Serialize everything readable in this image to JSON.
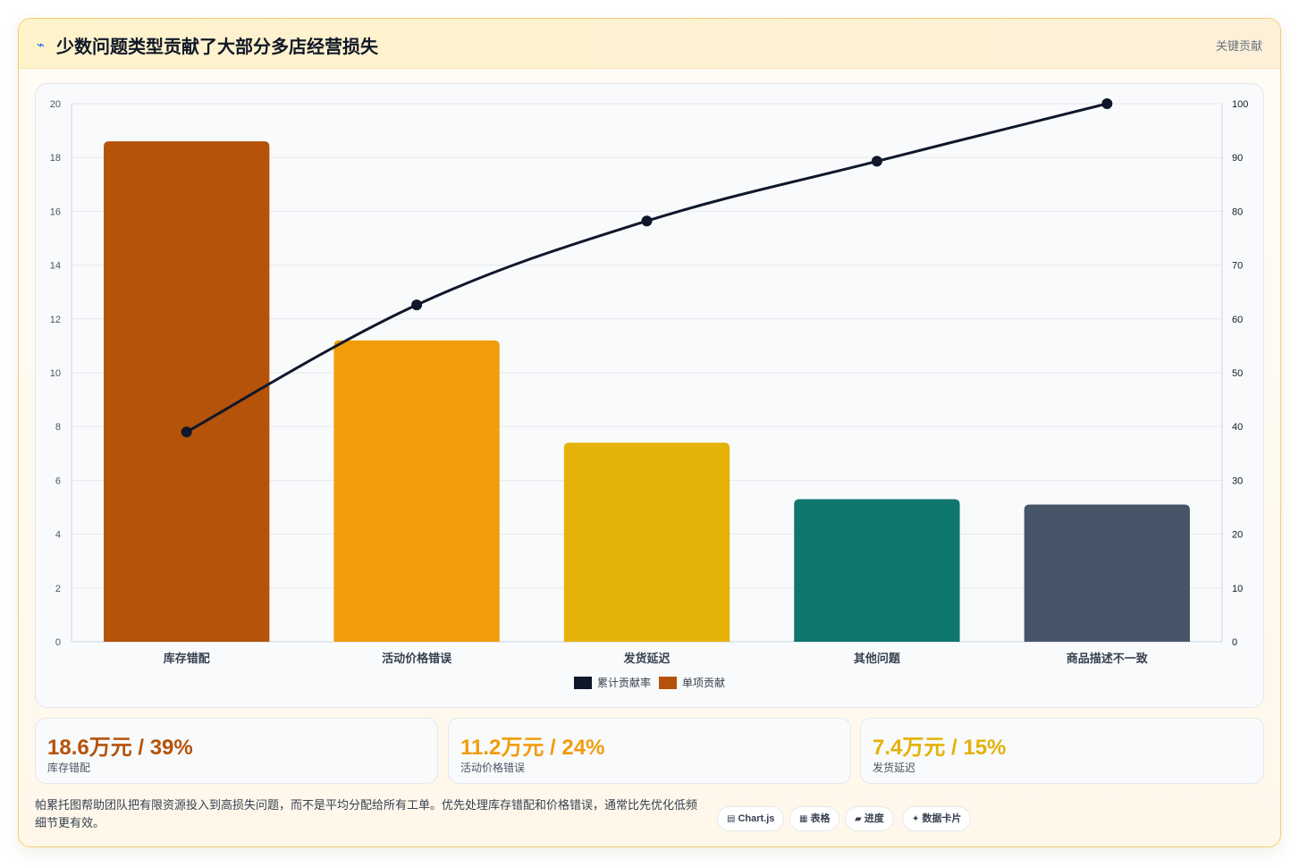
{
  "header": {
    "icon": "trend-icon",
    "title": "少数问题类型贡献了大部分多店经营损失",
    "tag": "关键贡献"
  },
  "chart_data": {
    "type": "bar",
    "categories": [
      "库存错配",
      "活动价格错误",
      "发货延迟",
      "其他问题",
      "商品描述不一致"
    ],
    "series": [
      {
        "name": "单项贡献",
        "type": "bar",
        "axis": "left",
        "values": [
          18.6,
          11.2,
          7.4,
          5.3,
          5.1
        ],
        "colors": [
          "#b45309",
          "#f29c0c",
          "#e5b208",
          "#0f766e",
          "#475569"
        ]
      },
      {
        "name": "累计贡献率",
        "type": "line",
        "axis": "right",
        "values": [
          39,
          62.6,
          78.2,
          89.3,
          100
        ],
        "color": "#0f172a"
      }
    ],
    "y_left": {
      "min": 0,
      "max": 20,
      "ticks": [
        0,
        2,
        4,
        6,
        8,
        10,
        12,
        14,
        16,
        18,
        20
      ]
    },
    "y_right": {
      "min": 0,
      "max": 100,
      "ticks": [
        0,
        10,
        20,
        30,
        40,
        50,
        60,
        70,
        80,
        90,
        100
      ]
    },
    "legend": [
      {
        "label": "累计贡献率",
        "color": "#0f172a"
      },
      {
        "label": "单项贡献",
        "color": "#b45309"
      }
    ],
    "legend_position": "bottom",
    "grid": true
  },
  "kpis": [
    {
      "value": "18.6万元 / 39%",
      "label": "库存错配",
      "color": "#b45309"
    },
    {
      "value": "11.2万元 / 24%",
      "label": "活动价格错误",
      "color": "#f29c0c"
    },
    {
      "value": "7.4万元 / 15%",
      "label": "发货延迟",
      "color": "#e5b208"
    }
  ],
  "footnote": "帕累托图帮助团队把有限资源投入到高损失问题，而不是平均分配给所有工单。优先处理库存错配和价格错误，通常比先优化低频细节更有效。",
  "chips": [
    {
      "icon": "▤",
      "label": "Chart.js"
    },
    {
      "icon": "▦",
      "label": "表格"
    },
    {
      "icon": "▰",
      "label": "进度"
    },
    {
      "icon": "✦",
      "label": "数据卡片"
    }
  ]
}
